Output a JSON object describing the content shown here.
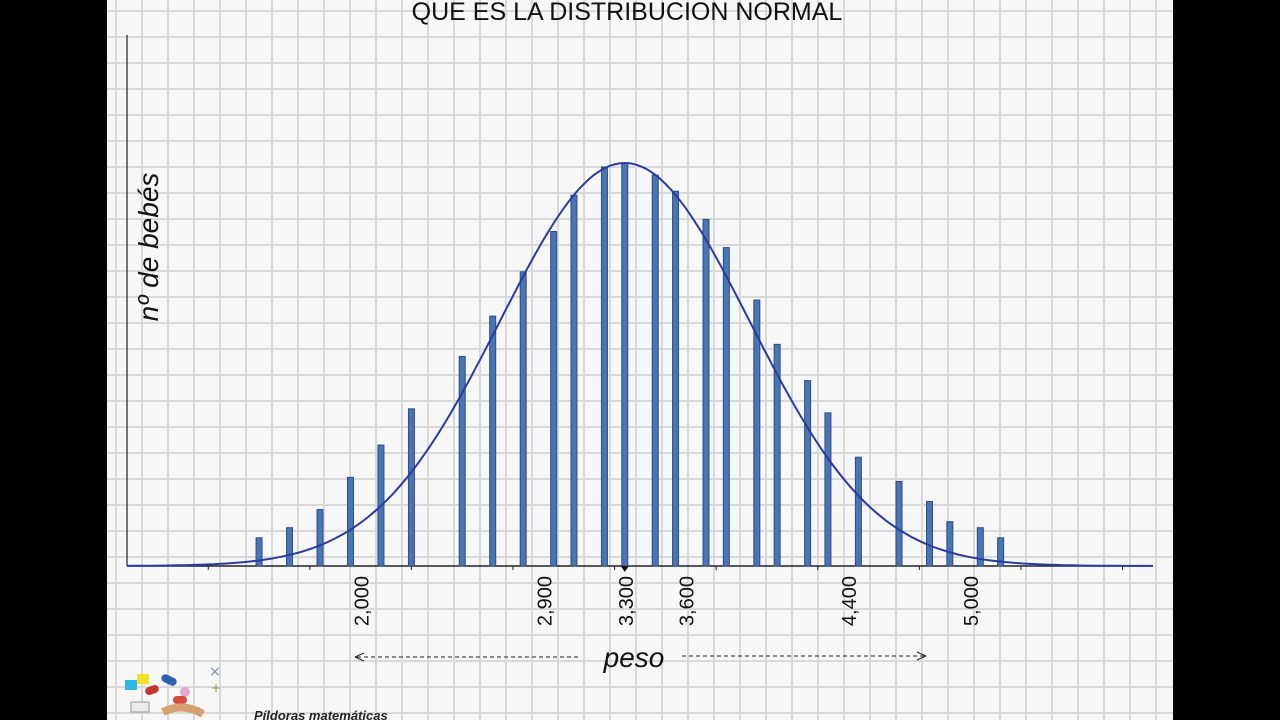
{
  "chart_data": {
    "type": "bar",
    "title": "QUE ES LA DISTRIBUCION NORMAL",
    "xlabel": "peso",
    "ylabel": "nº de bebés",
    "x_tick_labels": [
      "2,000",
      "2,900",
      "3,300",
      "3,600",
      "4,400",
      "5,000"
    ],
    "x_tick_values": [
      2000,
      2900,
      3300,
      3600,
      4400,
      5000
    ],
    "series": [
      {
        "x": [
          1500,
          1650,
          1800,
          1950,
          2100,
          2250,
          2500,
          2650,
          2800,
          2950,
          3050,
          3200,
          3300,
          3450,
          3550,
          3700,
          3800,
          3950,
          4050,
          4200,
          4300,
          4450,
          4650,
          4800,
          4900,
          5050,
          5150
        ],
        "values": [
          0.07,
          0.095,
          0.14,
          0.22,
          0.3,
          0.39,
          0.52,
          0.62,
          0.73,
          0.83,
          0.92,
          0.99,
          1.0,
          0.97,
          0.93,
          0.86,
          0.79,
          0.66,
          0.55,
          0.46,
          0.38,
          0.27,
          0.21,
          0.16,
          0.11,
          0.095,
          0.07
        ]
      }
    ],
    "curve": {
      "type": "normal",
      "mean": 3300,
      "peak": 1.0
    },
    "colors": {
      "bars": "#4a74b4",
      "bar_edge": "#2a4e86",
      "curve": "#2d3aa0",
      "axis": "#222222"
    },
    "grid": true
  },
  "footer": {
    "text": "Píldoras matemáticas"
  }
}
